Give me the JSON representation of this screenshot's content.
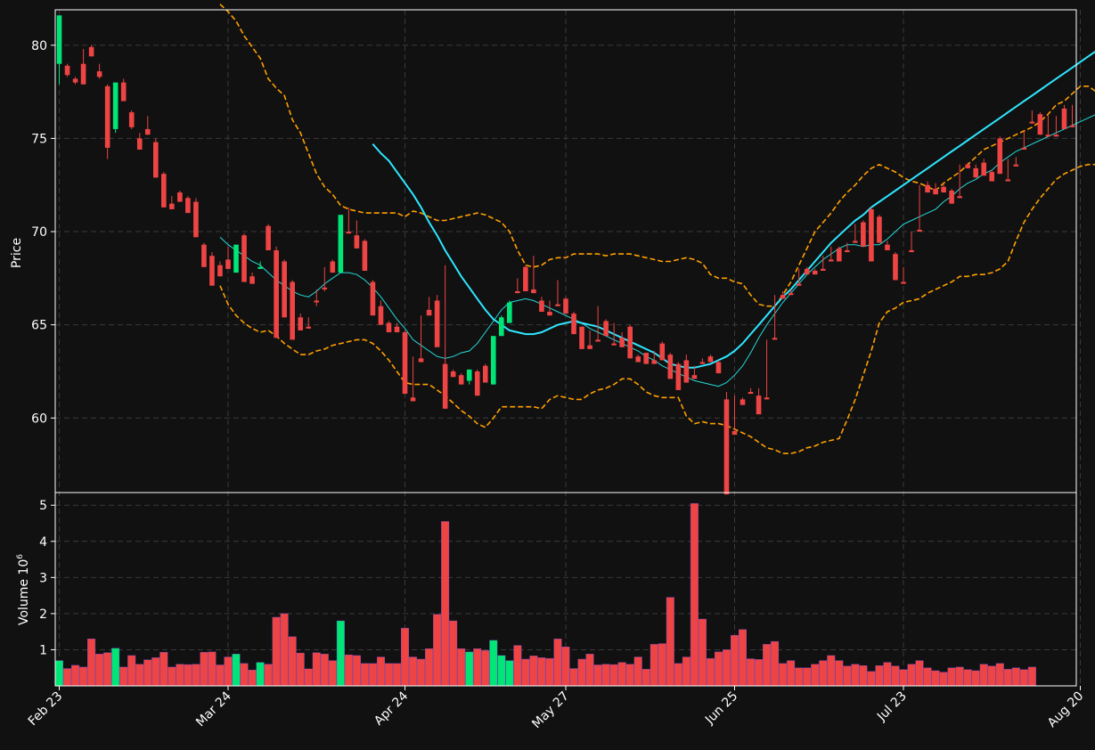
{
  "chart_data": {
    "type": "candlestick",
    "colors": {
      "background": "#111111",
      "up": "#00e676",
      "down": "#ef4444",
      "grid": "#3a3a3a",
      "axis": "#ffffff",
      "ma_fast": "#26d9d9",
      "ma_slow": "#2ee6ff",
      "bands": "#ffa000"
    },
    "x_tick_labels": [
      "Feb 23",
      "Mar 24",
      "Apr 24",
      "May 27",
      "Jun 25",
      "Jul 23",
      "Aug 20"
    ],
    "x_tick_index": [
      0,
      21,
      43,
      63,
      84,
      105,
      127
    ],
    "price_axis": {
      "label": "Price",
      "ylim": [
        56,
        81.9
      ],
      "ticks": [
        60,
        65,
        70,
        75,
        80
      ]
    },
    "volume_axis": {
      "label": "Volume",
      "exponent_label": "10",
      "exponent": "6",
      "ylim": [
        0,
        5.35
      ],
      "ticks": [
        1,
        2,
        3,
        4,
        5
      ]
    },
    "grid": true,
    "candles": [
      [
        79.0,
        81.5,
        77.9,
        81.6
      ],
      [
        78.9,
        79.0,
        78.3,
        78.4
      ],
      [
        78.2,
        78.3,
        77.9,
        78.0
      ],
      [
        79.0,
        79.8,
        78.8,
        77.9
      ],
      [
        79.9,
        80.0,
        79.5,
        79.4
      ],
      [
        78.6,
        79.0,
        78.2,
        78.3
      ],
      [
        77.8,
        77.9,
        73.9,
        74.5
      ],
      [
        75.5,
        77.8,
        75.3,
        78.0
      ],
      [
        78.0,
        78.2,
        77.1,
        77.0
      ],
      [
        76.4,
        76.5,
        75.5,
        75.6
      ],
      [
        75.0,
        75.3,
        74.6,
        74.4
      ],
      [
        75.5,
        76.2,
        75.3,
        75.2
      ],
      [
        74.8,
        75.0,
        73.3,
        72.9
      ],
      [
        73.1,
        73.2,
        71.5,
        71.3
      ],
      [
        71.5,
        71.6,
        71.9,
        71.2
      ],
      [
        72.1,
        72.2,
        71.7,
        71.6
      ],
      [
        71.8,
        71.9,
        71.1,
        71.0
      ],
      [
        71.6,
        71.8,
        69.8,
        69.7
      ],
      [
        69.3,
        69.4,
        68.1,
        68.1
      ],
      [
        68.7,
        68.9,
        67.2,
        67.1
      ],
      [
        68.2,
        68.4,
        67.7,
        67.6
      ],
      [
        68.5,
        69.2,
        68.4,
        68.0
      ],
      [
        67.8,
        69.2,
        68.0,
        69.3
      ],
      [
        69.8,
        69.9,
        67.8,
        67.3
      ],
      [
        67.6,
        67.8,
        67.7,
        67.2
      ],
      [
        68.0,
        68.1,
        68.4,
        68.1
      ],
      [
        70.3,
        70.4,
        69.2,
        69.0
      ],
      [
        69.0,
        69.2,
        64.5,
        64.3
      ],
      [
        68.4,
        68.5,
        65.6,
        65.4
      ],
      [
        67.3,
        67.4,
        64.4,
        64.2
      ],
      [
        65.4,
        65.6,
        64.8,
        64.7
      ],
      [
        64.9,
        65.2,
        65.4,
        64.8
      ],
      [
        66.3,
        66.0,
        66.9,
        66.2
      ],
      [
        67.0,
        66.8,
        68.1,
        66.9
      ],
      [
        68.4,
        68.5,
        67.9,
        67.8
      ],
      [
        67.8,
        67.8,
        70.9,
        70.9
      ],
      [
        70.0,
        71.3,
        70.2,
        69.9
      ],
      [
        69.8,
        70.6,
        69.2,
        69.1
      ],
      [
        69.5,
        69.6,
        68.0,
        67.9
      ],
      [
        67.3,
        67.4,
        65.7,
        65.5
      ],
      [
        66.0,
        66.3,
        65.2,
        65.0
      ],
      [
        65.1,
        65.2,
        64.8,
        64.6
      ],
      [
        64.9,
        65.1,
        64.7,
        64.6
      ],
      [
        64.6,
        64.7,
        61.6,
        61.3
      ],
      [
        61.1,
        63.3,
        61.0,
        60.9
      ],
      [
        63.2,
        65.5,
        63.1,
        63.0
      ],
      [
        65.8,
        66.5,
        65.6,
        65.5
      ],
      [
        66.3,
        66.6,
        64.2,
        63.8
      ],
      [
        62.9,
        68.2,
        62.2,
        60.5
      ],
      [
        62.5,
        62.6,
        62.3,
        62.2
      ],
      [
        62.3,
        62.4,
        62.0,
        61.8
      ],
      [
        62.0,
        62.4,
        61.8,
        62.6
      ],
      [
        62.5,
        62.6,
        61.4,
        61.2
      ],
      [
        62.8,
        62.9,
        62.0,
        61.9
      ],
      [
        61.8,
        61.8,
        64.3,
        64.4
      ],
      [
        64.4,
        64.5,
        65.5,
        65.4
      ],
      [
        65.1,
        65.1,
        66.3,
        66.2
      ],
      [
        66.8,
        66.7,
        67.5,
        66.7
      ],
      [
        68.1,
        68.2,
        66.9,
        66.8
      ],
      [
        66.9,
        68.7,
        66.8,
        66.7
      ],
      [
        66.3,
        66.5,
        65.8,
        65.7
      ],
      [
        65.7,
        65.6,
        66.3,
        65.5
      ],
      [
        66.1,
        66.0,
        67.4,
        66.0
      ],
      [
        66.4,
        66.5,
        65.7,
        65.6
      ],
      [
        65.6,
        65.7,
        64.6,
        64.5
      ],
      [
        64.9,
        64.9,
        63.8,
        63.7
      ],
      [
        63.9,
        63.8,
        64.7,
        63.7
      ],
      [
        64.2,
        64.1,
        66.0,
        64.1
      ],
      [
        65.2,
        65.3,
        64.5,
        64.4
      ],
      [
        64.0,
        64.0,
        65.1,
        63.9
      ],
      [
        64.3,
        64.3,
        64.6,
        63.8
      ],
      [
        64.9,
        65.0,
        63.4,
        63.2
      ],
      [
        63.3,
        63.4,
        63.1,
        63.0
      ],
      [
        63.5,
        63.5,
        63.0,
        62.9
      ],
      [
        63.1,
        63.2,
        63.6,
        62.9
      ],
      [
        64.0,
        64.1,
        63.2,
        63.1
      ],
      [
        63.4,
        63.5,
        62.3,
        62.1
      ],
      [
        62.9,
        63.0,
        61.7,
        61.5
      ],
      [
        63.1,
        63.4,
        62.1,
        61.9
      ],
      [
        62.3,
        62.2,
        62.8,
        62.1
      ],
      [
        63.0,
        63.0,
        63.2,
        62.9
      ],
      [
        63.3,
        63.4,
        63.1,
        63.0
      ],
      [
        63.0,
        63.1,
        62.7,
        62.4
      ],
      [
        61.0,
        61.4,
        59.2,
        55.9
      ],
      [
        59.3,
        59.2,
        61.2,
        59.1
      ],
      [
        61.0,
        61.1,
        60.8,
        60.7
      ],
      [
        61.4,
        61.5,
        61.6,
        61.3
      ],
      [
        61.2,
        61.6,
        61.0,
        60.2
      ],
      [
        61.1,
        61.2,
        64.2,
        61.0
      ],
      [
        64.3,
        64.4,
        66.6,
        64.2
      ],
      [
        66.6,
        66.7,
        66.8,
        66.4
      ],
      [
        66.7,
        66.8,
        66.9,
        66.6
      ],
      [
        67.2,
        67.3,
        68.0,
        67.1
      ],
      [
        68.0,
        68.1,
        67.8,
        67.7
      ],
      [
        67.9,
        68.0,
        67.8,
        67.7
      ],
      [
        68.0,
        68.1,
        68.7,
        67.9
      ],
      [
        68.5,
        68.5,
        69.2,
        68.4
      ],
      [
        69.1,
        69.2,
        68.6,
        68.4
      ],
      [
        69.0,
        69.1,
        69.4,
        68.9
      ],
      [
        69.5,
        69.8,
        70.4,
        69.4
      ],
      [
        70.5,
        70.6,
        69.3,
        69.2
      ],
      [
        71.2,
        71.3,
        68.6,
        68.4
      ],
      [
        70.8,
        70.9,
        69.6,
        69.4
      ],
      [
        69.3,
        69.5,
        69.1,
        69.0
      ],
      [
        68.8,
        68.9,
        67.5,
        67.4
      ],
      [
        67.3,
        67.3,
        68.1,
        67.2
      ],
      [
        69.0,
        69.1,
        70.0,
        68.9
      ],
      [
        70.1,
        70.2,
        72.5,
        70.0
      ],
      [
        72.5,
        72.7,
        72.2,
        72.1
      ],
      [
        72.3,
        72.5,
        72.6,
        72.0
      ],
      [
        72.4,
        72.5,
        72.6,
        72.1
      ],
      [
        72.2,
        72.3,
        71.7,
        71.5
      ],
      [
        71.9,
        72.0,
        73.6,
        71.8
      ],
      [
        73.6,
        73.7,
        73.5,
        73.4
      ],
      [
        73.4,
        73.6,
        73.0,
        72.9
      ],
      [
        73.7,
        73.9,
        73.2,
        73.0
      ],
      [
        73.2,
        73.3,
        72.9,
        72.7
      ],
      [
        75.0,
        75.1,
        73.2,
        73.1
      ],
      [
        72.8,
        72.9,
        73.9,
        72.7
      ],
      [
        73.6,
        73.7,
        74.0,
        73.5
      ],
      [
        74.5,
        74.6,
        75.4,
        74.4
      ],
      [
        75.9,
        76.0,
        76.5,
        75.8
      ],
      [
        76.3,
        76.4,
        75.4,
        75.2
      ],
      [
        75.2,
        75.4,
        76.3,
        75.1
      ],
      [
        75.2,
        75.3,
        76.2,
        75.1
      ],
      [
        76.6,
        76.8,
        75.6,
        75.5
      ],
      [
        75.7,
        75.7,
        76.8,
        75.6
      ]
    ],
    "volume": [
      0.7,
      0.48,
      0.57,
      0.52,
      1.3,
      0.88,
      0.92,
      1.04,
      0.52,
      0.84,
      0.6,
      0.72,
      0.78,
      0.93,
      0.52,
      0.6,
      0.59,
      0.6,
      0.93,
      0.94,
      0.58,
      0.8,
      0.88,
      0.62,
      0.44,
      0.65,
      0.6,
      1.9,
      2.0,
      1.36,
      0.91,
      0.47,
      0.92,
      0.88,
      0.7,
      1.8,
      0.86,
      0.84,
      0.62,
      0.62,
      0.8,
      0.62,
      0.62,
      1.6,
      0.8,
      0.74,
      1.03,
      1.98,
      4.55,
      1.8,
      1.03,
      0.94,
      1.03,
      0.98,
      1.26,
      0.84,
      0.7,
      1.12,
      0.74,
      0.83,
      0.78,
      0.76,
      1.3,
      1.08,
      0.48,
      0.74,
      0.88,
      0.58,
      0.6,
      0.59,
      0.65,
      0.6,
      0.8,
      0.46,
      1.15,
      1.17,
      2.45,
      0.62,
      0.8,
      5.05,
      1.85,
      0.76,
      0.94,
      1.0,
      1.4,
      1.56,
      0.75,
      0.73,
      1.15,
      1.23,
      0.62,
      0.7,
      0.5,
      0.5,
      0.6,
      0.7,
      0.84,
      0.7,
      0.55,
      0.6,
      0.56,
      0.4,
      0.56,
      0.65,
      0.55,
      0.45,
      0.6,
      0.7,
      0.5,
      0.42,
      0.38,
      0.5,
      0.52,
      0.45,
      0.42,
      0.6,
      0.55,
      0.62,
      0.46,
      0.5,
      0.45,
      0.52
    ],
    "ma_fast": [
      null,
      null,
      null,
      null,
      null,
      null,
      null,
      null,
      null,
      null,
      null,
      null,
      null,
      null,
      null,
      null,
      null,
      null,
      null,
      null,
      69.7,
      69.3,
      69.0,
      68.7,
      68.4,
      68.2,
      67.8,
      67.4,
      67.1,
      66.8,
      66.6,
      66.5,
      66.8,
      67.2,
      67.5,
      67.8,
      67.8,
      67.7,
      67.4,
      67.0,
      66.5,
      65.9,
      65.3,
      64.8,
      64.2,
      63.9,
      63.6,
      63.3,
      63.2,
      63.3,
      63.5,
      63.6,
      64.0,
      64.6,
      65.2,
      65.8,
      66.2,
      66.3,
      66.4,
      66.3,
      66.1,
      65.9,
      65.7,
      65.5,
      65.3,
      65.1,
      64.8,
      64.6,
      64.4,
      64.2,
      64.0,
      63.8,
      63.6,
      63.3,
      63.1,
      62.8,
      62.6,
      62.4,
      62.2,
      62.0,
      61.9,
      61.8,
      61.7,
      61.9,
      62.3,
      62.8,
      63.5,
      64.3,
      65.0,
      65.6,
      66.2,
      66.7,
      67.2,
      67.7,
      68.1,
      68.5,
      68.8,
      69.1,
      69.3,
      69.3,
      69.2,
      69.3,
      69.3,
      69.6,
      70.0,
      70.4,
      70.6,
      70.8,
      71.0,
      71.2,
      71.6,
      71.9,
      72.3,
      72.6,
      72.8,
      73.1,
      73.3,
      73.7,
      74.0,
      74.3,
      74.5,
      74.7,
      74.9,
      75.1,
      75.3,
      75.5,
      75.7,
      75.9,
      76.1,
      76.3
    ],
    "ma_slow": [
      null,
      null,
      null,
      null,
      null,
      null,
      null,
      null,
      null,
      null,
      null,
      null,
      null,
      null,
      null,
      null,
      null,
      null,
      null,
      null,
      null,
      null,
      null,
      null,
      null,
      null,
      null,
      null,
      null,
      null,
      null,
      null,
      null,
      null,
      null,
      null,
      null,
      null,
      null,
      74.7,
      74.2,
      73.8,
      73.2,
      72.6,
      72.0,
      71.3,
      70.5,
      69.8,
      69.0,
      68.3,
      67.6,
      67.0,
      66.4,
      65.8,
      65.3,
      65.0,
      64.7,
      64.6,
      64.5,
      64.5,
      64.6,
      64.8,
      65.0,
      65.1,
      65.2,
      65.1,
      65.0,
      64.9,
      64.7,
      64.5,
      64.3,
      64.1,
      63.9,
      63.7,
      63.5,
      63.2,
      62.9,
      62.8,
      62.7,
      62.7,
      62.8,
      62.9,
      63.1,
      63.3,
      63.6,
      64.0,
      64.5,
      65.0,
      65.5,
      66.0,
      66.5,
      66.9,
      67.4,
      67.9,
      68.4,
      68.9,
      69.4,
      69.8,
      70.2,
      70.6,
      70.9,
      71.3,
      71.6,
      71.9,
      72.2,
      72.5,
      72.8,
      73.1,
      73.4,
      73.7,
      74.0,
      74.3,
      74.6,
      74.9,
      75.2,
      75.5,
      75.8,
      76.1,
      76.4,
      76.7,
      77.0,
      77.3,
      77.6,
      77.9,
      78.2,
      78.5,
      78.8,
      79.1,
      79.4,
      79.7
    ],
    "band_upper": [
      null,
      null,
      null,
      null,
      null,
      null,
      null,
      null,
      null,
      null,
      null,
      null,
      null,
      null,
      null,
      null,
      null,
      null,
      null,
      null,
      82.2,
      81.8,
      81.3,
      80.5,
      79.9,
      79.3,
      78.2,
      77.7,
      77.3,
      76.0,
      75.3,
      74.2,
      73.1,
      72.4,
      72.0,
      71.4,
      71.2,
      71.1,
      71.0,
      71.0,
      71.0,
      71.0,
      71.0,
      70.8,
      71.1,
      71.0,
      70.8,
      70.6,
      70.6,
      70.7,
      70.8,
      70.9,
      71.0,
      70.9,
      70.7,
      70.5,
      70.0,
      69.0,
      68.2,
      68.1,
      68.2,
      68.5,
      68.6,
      68.6,
      68.8,
      68.8,
      68.8,
      68.8,
      68.7,
      68.8,
      68.8,
      68.8,
      68.7,
      68.6,
      68.5,
      68.4,
      68.4,
      68.5,
      68.6,
      68.5,
      68.3,
      67.7,
      67.5,
      67.5,
      67.3,
      67.2,
      66.6,
      66.1,
      66.0,
      66.0,
      66.6,
      67.3,
      68.2,
      69.1,
      70.0,
      70.5,
      71.0,
      71.6,
      72.1,
      72.5,
      73.0,
      73.4,
      73.6,
      73.4,
      73.2,
      72.9,
      72.7,
      72.6,
      72.4,
      72.2,
      72.6,
      72.9,
      73.2,
      73.6,
      74.0,
      74.4,
      74.6,
      74.8,
      75.0,
      75.2,
      75.4,
      75.6,
      75.9,
      76.3,
      76.8,
      77.0,
      77.4,
      77.8,
      77.8,
      77.5
    ],
    "band_lower": [
      null,
      null,
      null,
      null,
      null,
      null,
      null,
      null,
      null,
      null,
      null,
      null,
      null,
      null,
      null,
      null,
      null,
      null,
      null,
      null,
      67.1,
      66.1,
      65.5,
      65.1,
      64.8,
      64.6,
      64.7,
      64.4,
      64.0,
      63.7,
      63.4,
      63.4,
      63.6,
      63.7,
      63.9,
      64.0,
      64.1,
      64.2,
      64.2,
      64.0,
      63.6,
      63.1,
      62.5,
      61.9,
      61.8,
      61.8,
      61.8,
      61.5,
      61.2,
      60.8,
      60.4,
      60.1,
      59.7,
      59.5,
      60.0,
      60.6,
      60.6,
      60.6,
      60.6,
      60.6,
      60.5,
      61.0,
      61.2,
      61.1,
      61.0,
      61.0,
      61.3,
      61.5,
      61.6,
      61.8,
      62.1,
      62.1,
      61.8,
      61.4,
      61.2,
      61.1,
      61.1,
      61.1,
      60.1,
      59.7,
      59.8,
      59.7,
      59.7,
      59.6,
      59.4,
      59.2,
      59.0,
      58.7,
      58.4,
      58.3,
      58.1,
      58.1,
      58.2,
      58.4,
      58.5,
      58.7,
      58.8,
      58.9,
      59.9,
      61.0,
      62.3,
      63.6,
      65.1,
      65.7,
      65.9,
      66.2,
      66.3,
      66.4,
      66.7,
      66.9,
      67.1,
      67.3,
      67.6,
      67.6,
      67.7,
      67.7,
      67.8,
      68.0,
      68.4,
      69.5,
      70.5,
      71.2,
      71.8,
      72.3,
      72.8,
      73.1,
      73.3,
      73.5,
      73.6,
      73.6
    ]
  }
}
